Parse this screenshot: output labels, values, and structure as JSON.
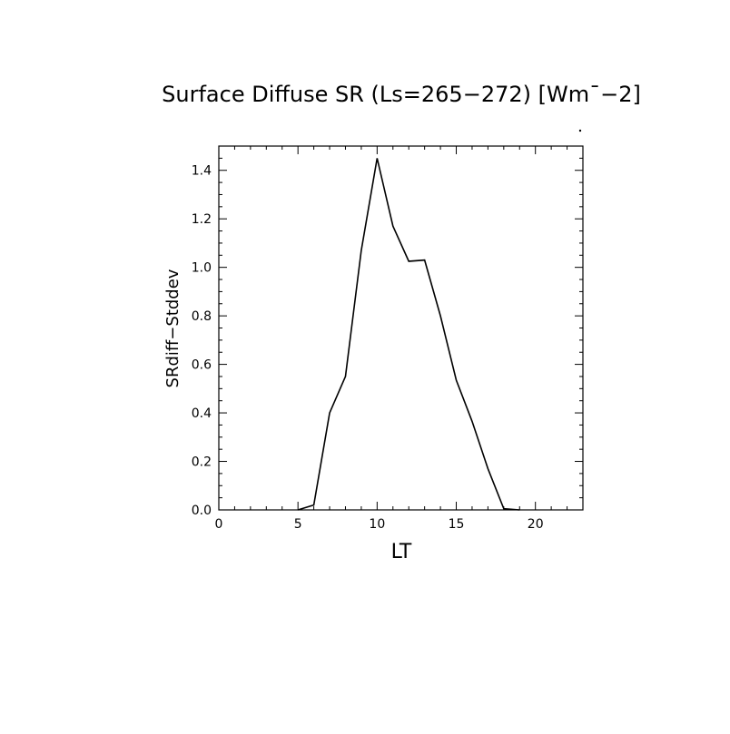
{
  "chart_data": {
    "type": "line",
    "title": "Surface Diffuse SR (Ls=265−272) [Wm¯−2]",
    "xlabel": "LT",
    "ylabel": "SRdiff−Stddev",
    "xlim": [
      0,
      23
    ],
    "ylim": [
      0,
      1.5
    ],
    "xticks": [
      0,
      5,
      10,
      15,
      20
    ],
    "xtick_labels": [
      "0",
      "5",
      "10",
      "15",
      "20"
    ],
    "yticks": [
      0.0,
      0.2,
      0.4,
      0.6,
      0.8,
      1.0,
      1.2,
      1.4
    ],
    "ytick_labels": [
      "0.0",
      "0.2",
      "0.4",
      "0.6",
      "0.8",
      "1.0",
      "1.2",
      "1.4"
    ],
    "grid": false,
    "series": [
      {
        "x": [
          5,
          6,
          7,
          8,
          9,
          10,
          11,
          12,
          13,
          14,
          15,
          16,
          17,
          18,
          19
        ],
        "y": [
          0.0,
          0.02,
          0.4,
          0.55,
          1.07,
          1.45,
          1.17,
          1.025,
          1.03,
          0.8,
          0.535,
          0.365,
          0.17,
          0.005,
          0.0
        ]
      }
    ],
    "colors": {
      "line": "#000000",
      "axis": "#000000"
    }
  }
}
